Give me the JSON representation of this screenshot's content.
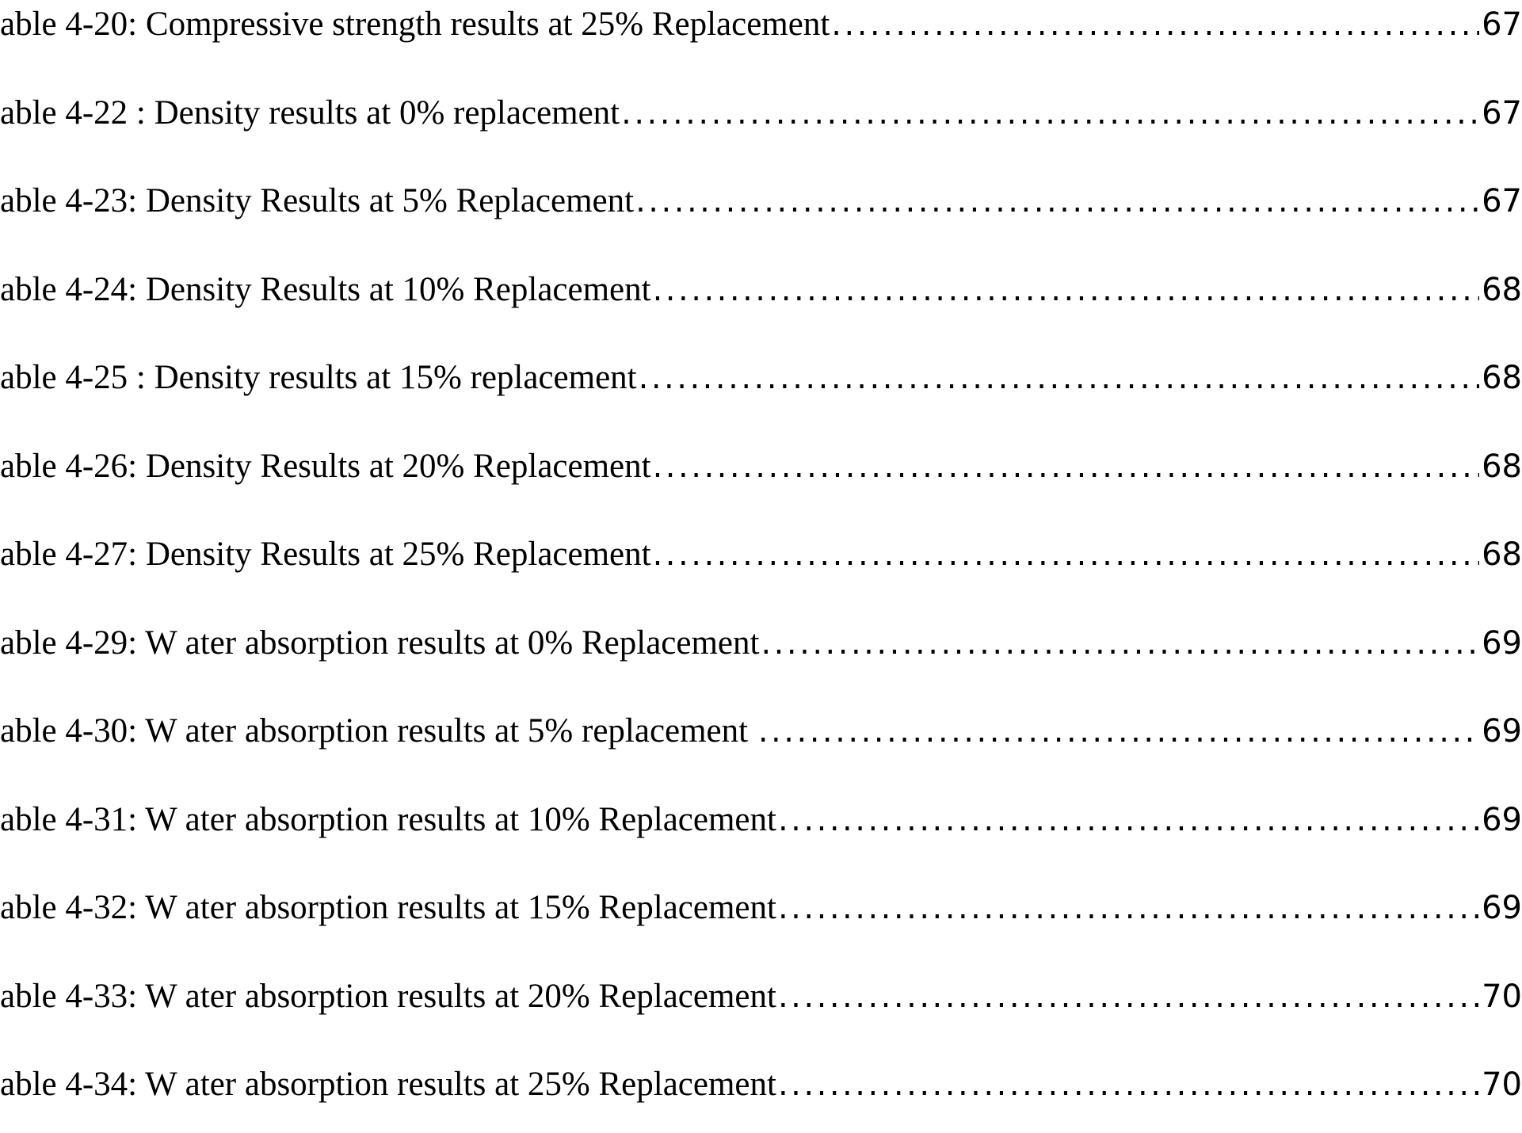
{
  "document": {
    "kind": "list-of-tables",
    "colors": {
      "text": "#000000",
      "background": "#ffffff"
    },
    "entries": [
      {
        "label": "able 4-20: Compressive strength results at 25% Replacement",
        "page": "67"
      },
      {
        "label": "able 4-22 : Density results at 0% replacement",
        "page": "67"
      },
      {
        "label": "able 4-23: Density Results at 5% Replacement",
        "page": "67"
      },
      {
        "label": "able 4-24: Density Results at 10% Replacement",
        "page": "68"
      },
      {
        "label": "able 4-25 : Density results at 15% replacement",
        "page": "68"
      },
      {
        "label": "able 4-26: Density Results at 20% Replacement",
        "page": "68"
      },
      {
        "label": "able 4-27: Density Results at 25% Replacement",
        "page": "68"
      },
      {
        "label": "able 4-29: W ater absorption results at 0% Replacement",
        "page": "69"
      },
      {
        "label": "able 4-30: W ater absorption results at 5% replacement ",
        "page": "69"
      },
      {
        "label": "able 4-31: W ater absorption results at 10% Replacement",
        "page": "69"
      },
      {
        "label": "able 4-32: W ater absorption results at 15% Replacement",
        "page": "69"
      },
      {
        "label": "able 4-33: W ater absorption results at 20% Replacement",
        "page": "70"
      },
      {
        "label": "able 4-34: W ater absorption results at 25% Replacement",
        "page": "70"
      }
    ]
  }
}
